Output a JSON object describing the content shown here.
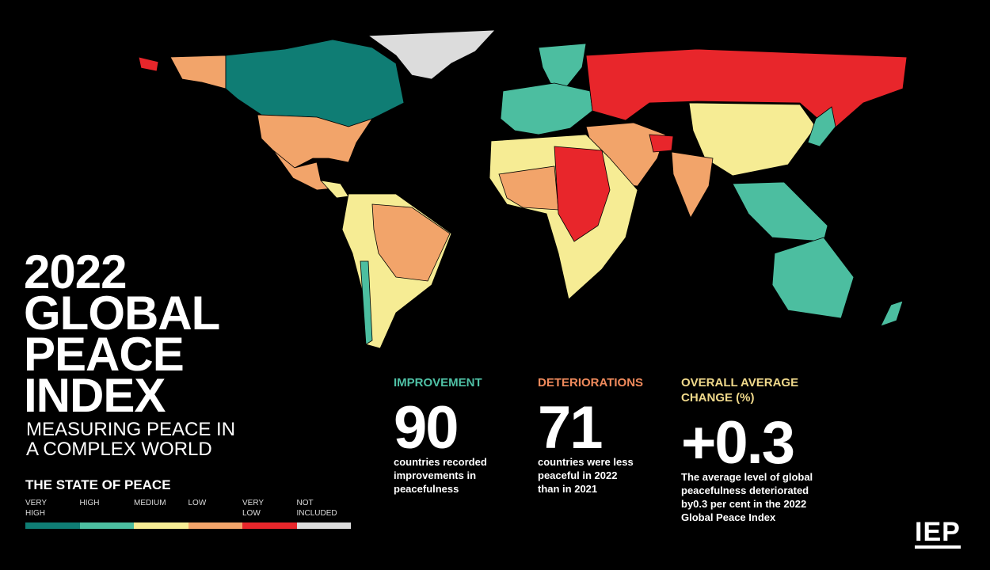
{
  "title": {
    "lines": [
      "2022",
      "GLOBAL",
      "PEACE",
      "INDEX"
    ],
    "subtitle": [
      "MEASURING PEACE IN",
      "A COMPLEX WORLD"
    ]
  },
  "legend": {
    "title": "THE STATE OF PEACE",
    "items": [
      {
        "label": [
          "VERY",
          "HIGH"
        ],
        "color": "#0f7d74"
      },
      {
        "label": [
          "HIGH"
        ],
        "color": "#4cbea0"
      },
      {
        "label": [
          "MEDIUM"
        ],
        "color": "#f6ec94"
      },
      {
        "label": [
          "LOW"
        ],
        "color": "#f2a46a"
      },
      {
        "label": [
          "VERY",
          "LOW"
        ],
        "color": "#e8262b"
      },
      {
        "label": [
          "NOT",
          "INCLUDED"
        ],
        "color": "#dcdcdc"
      }
    ]
  },
  "stats": [
    {
      "heading": [
        "IMPROVEMENT"
      ],
      "color": "#4fc1a6",
      "value": "90",
      "text": [
        "countries recorded",
        "improvements in",
        "peacefulness"
      ]
    },
    {
      "heading": [
        "DETERIORATIONS"
      ],
      "color": "#ef8a5c",
      "value": "71",
      "text": [
        "countries were less",
        "peaceful in 2022",
        "than in 2021"
      ]
    },
    {
      "heading": [
        "OVERALL AVERAGE",
        "CHANGE (%)"
      ],
      "color": "#f0d98b",
      "value": "+0.3",
      "text": [
        "The average level of global",
        "peacefulness deteriorated",
        "by0.3 per cent in the 2022",
        "Global Peace Index"
      ]
    }
  ],
  "logo": "IEP"
}
